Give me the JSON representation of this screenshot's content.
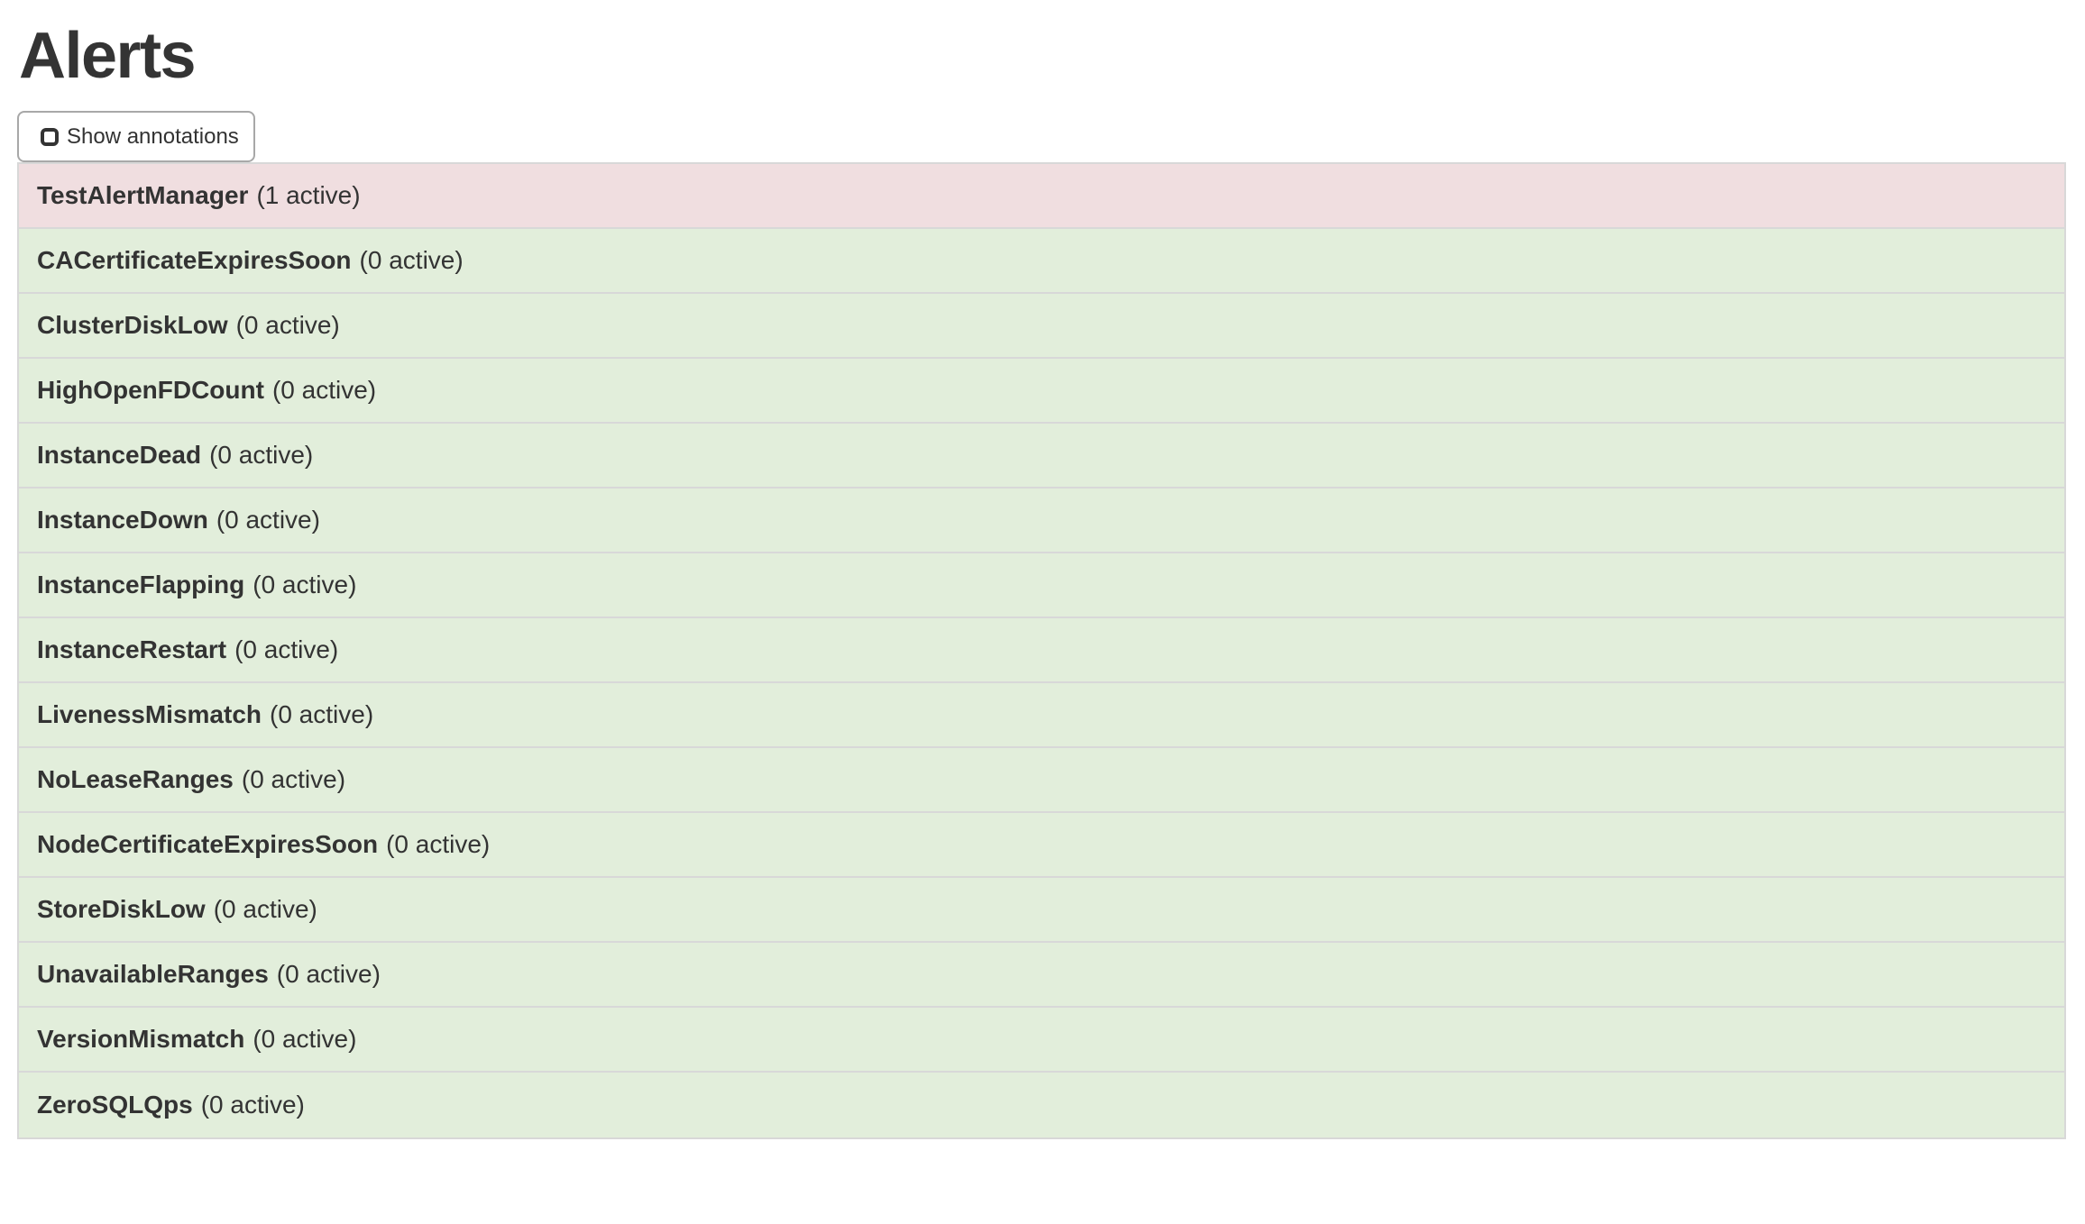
{
  "page": {
    "title": "Alerts"
  },
  "toolbar": {
    "show_annotations": {
      "label": "Show annotations",
      "checked": false
    }
  },
  "alerts": {
    "rows": [
      {
        "name": "TestAlertManager",
        "active_count": 1,
        "active_label": "(1 active)",
        "state": "firing"
      },
      {
        "name": "CACertificateExpiresSoon",
        "active_count": 0,
        "active_label": "(0 active)",
        "state": "inactive"
      },
      {
        "name": "ClusterDiskLow",
        "active_count": 0,
        "active_label": "(0 active)",
        "state": "inactive"
      },
      {
        "name": "HighOpenFDCount",
        "active_count": 0,
        "active_label": "(0 active)",
        "state": "inactive"
      },
      {
        "name": "InstanceDead",
        "active_count": 0,
        "active_label": "(0 active)",
        "state": "inactive"
      },
      {
        "name": "InstanceDown",
        "active_count": 0,
        "active_label": "(0 active)",
        "state": "inactive"
      },
      {
        "name": "InstanceFlapping",
        "active_count": 0,
        "active_label": "(0 active)",
        "state": "inactive"
      },
      {
        "name": "InstanceRestart",
        "active_count": 0,
        "active_label": "(0 active)",
        "state": "inactive"
      },
      {
        "name": "LivenessMismatch",
        "active_count": 0,
        "active_label": "(0 active)",
        "state": "inactive"
      },
      {
        "name": "NoLeaseRanges",
        "active_count": 0,
        "active_label": "(0 active)",
        "state": "inactive"
      },
      {
        "name": "NodeCertificateExpiresSoon",
        "active_count": 0,
        "active_label": "(0 active)",
        "state": "inactive"
      },
      {
        "name": "StoreDiskLow",
        "active_count": 0,
        "active_label": "(0 active)",
        "state": "inactive"
      },
      {
        "name": "UnavailableRanges",
        "active_count": 0,
        "active_label": "(0 active)",
        "state": "inactive"
      },
      {
        "name": "VersionMismatch",
        "active_count": 0,
        "active_label": "(0 active)",
        "state": "inactive"
      },
      {
        "name": "ZeroSQLQps",
        "active_count": 0,
        "active_label": "(0 active)",
        "state": "inactive"
      }
    ]
  },
  "colors": {
    "firing_bg": "#f0dee0",
    "inactive_bg": "#e2eedb",
    "row_border": "#d8d8d8",
    "text": "#333333",
    "button_border": "#a8a8a8",
    "page_bg": "#ffffff"
  }
}
